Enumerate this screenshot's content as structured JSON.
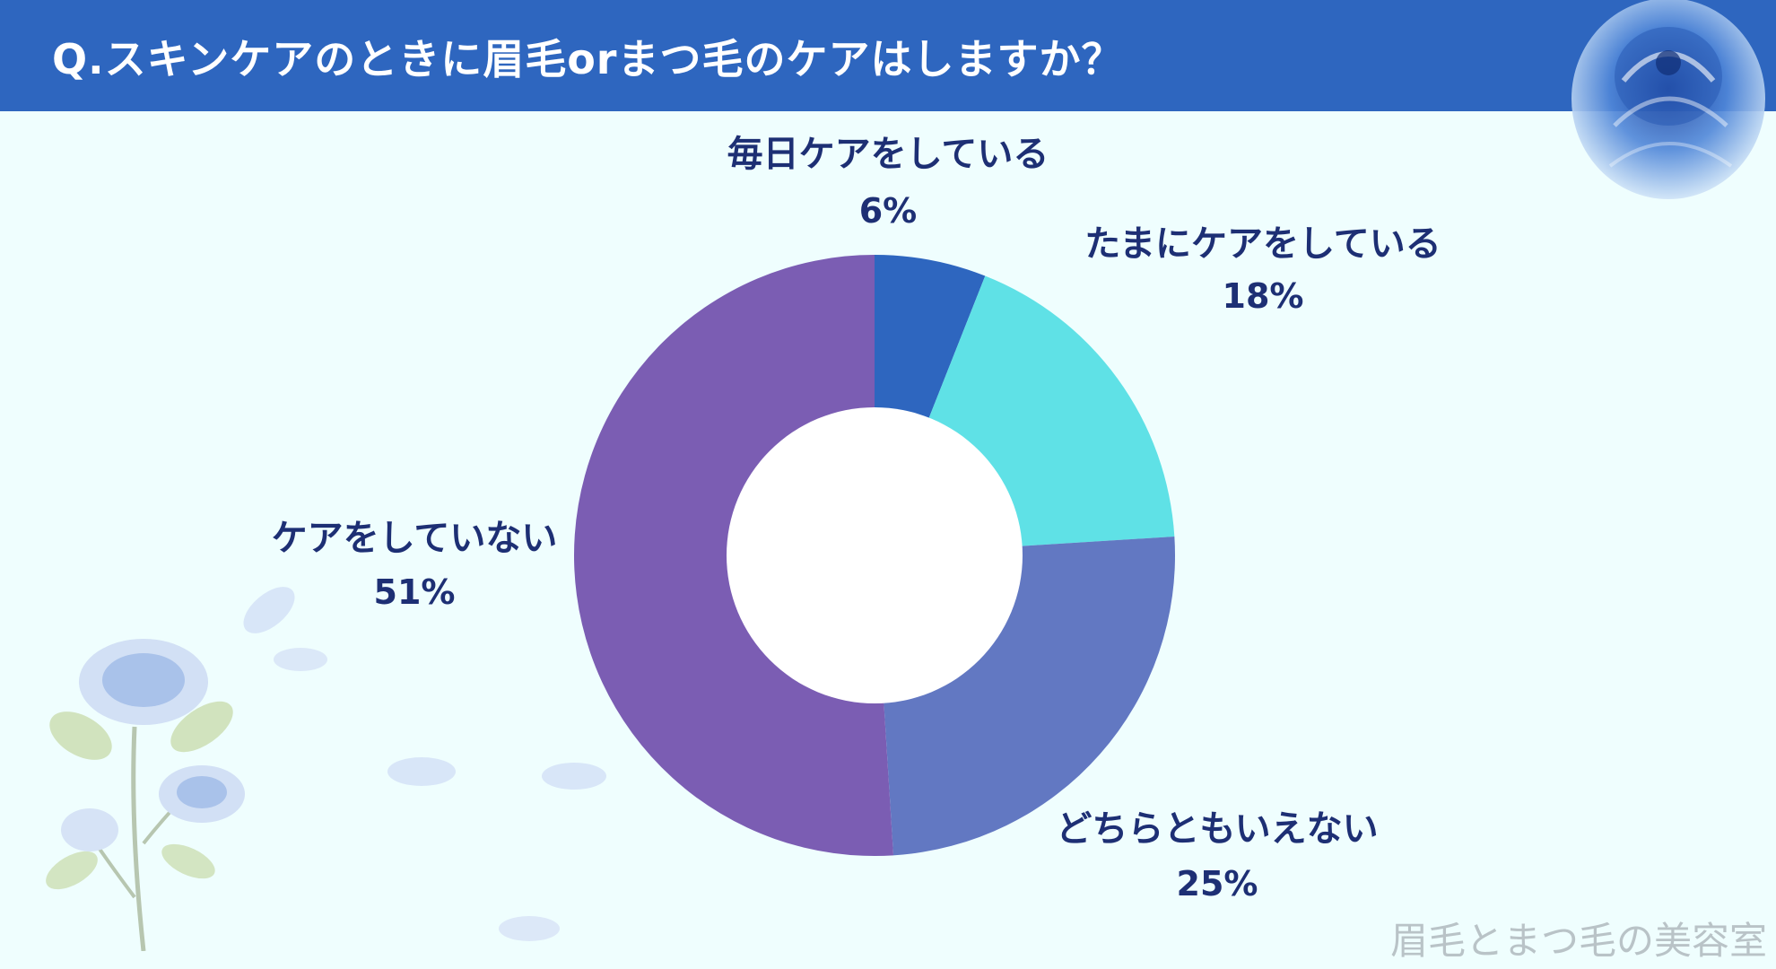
{
  "header": {
    "title": "Q.スキンケアのときに眉毛orまつ毛のケアはしますか？"
  },
  "chart_data": {
    "type": "pie",
    "variant": "donut",
    "title": "Q.スキンケアのときに眉毛orまつ毛のケアはしますか？",
    "categories": [
      "毎日ケアをしている",
      "たまにケアをしている",
      "どちらともいえない",
      "ケアをしていない"
    ],
    "values": [
      6,
      18,
      25,
      51
    ],
    "value_labels": [
      "6%",
      "18%",
      "25%",
      "51%"
    ],
    "colors": [
      "#2e66bf",
      "#5fe1e6",
      "#6278c2",
      "#7b5db3"
    ],
    "legend": "none"
  },
  "watermark": "眉毛とまつ毛の美容室",
  "decorations": [
    "blue-rose-icon",
    "rose-branch-icon",
    "petal-icon"
  ]
}
